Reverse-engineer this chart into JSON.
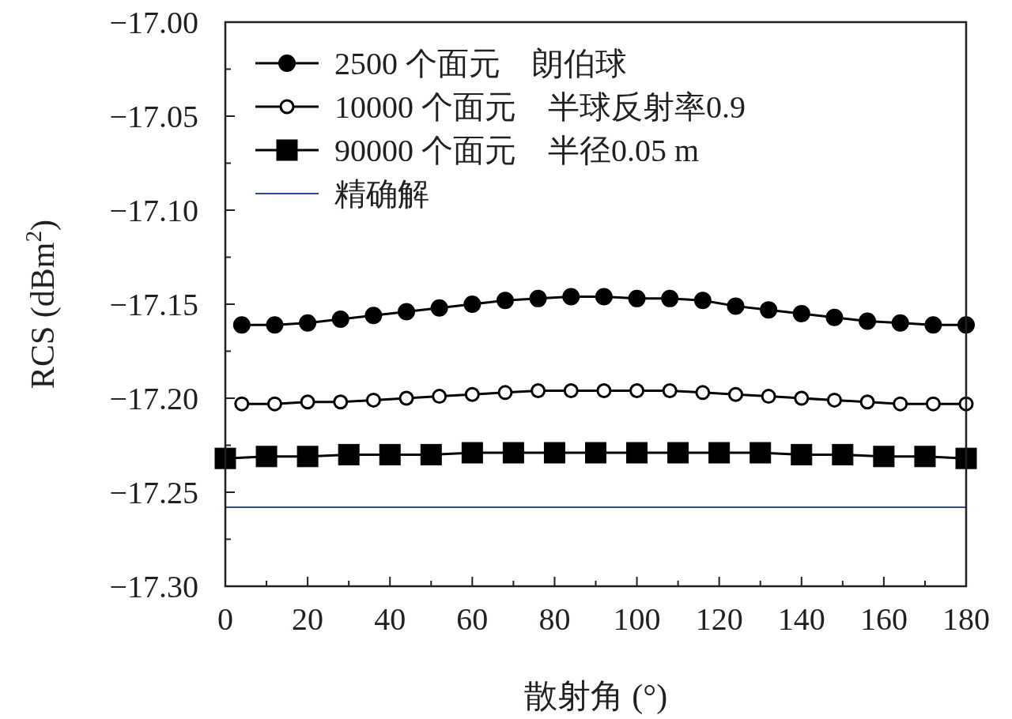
{
  "chart_data": {
    "type": "line",
    "xlabel": "散射角 (°)",
    "ylabel": "RCS (dBm$^{2}$)",
    "xlim": [
      0,
      180
    ],
    "xticks": [
      0,
      {
        "value": 10,
        "label": null
      },
      20,
      {
        "value": 30,
        "label": null
      },
      40,
      {
        "value": 50,
        "label": null
      },
      60,
      {
        "value": 70,
        "label": null
      },
      80,
      {
        "value": 90,
        "label": null
      },
      100,
      {
        "value": 110,
        "label": null
      },
      120,
      {
        "value": 130,
        "label": null
      },
      140,
      {
        "value": 150,
        "label": null
      },
      160,
      {
        "value": 170,
        "label": null
      },
      180
    ],
    "ylim": [
      -17.3,
      -17.0
    ],
    "yticks": [
      {
        "value": -17.3,
        "label": "−17.30"
      },
      {
        "value": -17.275,
        "label": null
      },
      {
        "value": -17.25,
        "label": "−17.25"
      },
      {
        "value": -17.225,
        "label": null
      },
      {
        "value": -17.2,
        "label": "−17.20"
      },
      {
        "value": -17.175,
        "label": null
      },
      {
        "value": -17.15,
        "label": "−17.15"
      },
      {
        "value": -17.125,
        "label": null
      },
      {
        "value": -17.1,
        "label": "−17.10"
      },
      {
        "value": -17.075,
        "label": null
      },
      {
        "value": -17.05,
        "label": "−17.05"
      },
      {
        "value": -17.025,
        "label": null
      },
      {
        "value": -17.0,
        "label": "−17.00"
      }
    ],
    "grid": false,
    "legend": "top left",
    "series": [
      {
        "name": "2500 个面元　朗伯球",
        "color": "#000000",
        "marker": "circle",
        "x": [
          4,
          12,
          20,
          28,
          36,
          44,
          52,
          60,
          68,
          76,
          84,
          92,
          100,
          108,
          116,
          124,
          132,
          140,
          148,
          156,
          164,
          172,
          180
        ],
        "values": [
          -17.161,
          -17.161,
          -17.16,
          -17.158,
          -17.156,
          -17.154,
          -17.152,
          -17.15,
          -17.148,
          -17.147,
          -17.146,
          -17.146,
          -17.147,
          -17.147,
          -17.148,
          -17.151,
          -17.153,
          -17.155,
          -17.157,
          -17.159,
          -17.16,
          -17.161,
          -17.161
        ]
      },
      {
        "name": "10000 个面元　半球反射率0.9",
        "color": "#000000",
        "marker": "circle",
        "x": [
          4,
          12,
          20,
          28,
          36,
          44,
          52,
          60,
          68,
          76,
          84,
          92,
          100,
          108,
          116,
          124,
          132,
          140,
          148,
          156,
          164,
          172,
          180
        ],
        "values": [
          -17.203,
          -17.203,
          -17.202,
          -17.202,
          -17.201,
          -17.2,
          -17.199,
          -17.198,
          -17.197,
          -17.196,
          -17.196,
          -17.196,
          -17.196,
          -17.196,
          -17.197,
          -17.198,
          -17.199,
          -17.2,
          -17.201,
          -17.202,
          -17.203,
          -17.203,
          -17.203
        ]
      },
      {
        "name": "90000 个面元　半径0.05 m",
        "color": "#000000",
        "marker": "square",
        "x": [
          0,
          10,
          20,
          30,
          40,
          50,
          60,
          70,
          80,
          90,
          100,
          110,
          120,
          130,
          140,
          150,
          160,
          170,
          180
        ],
        "values": [
          -17.232,
          -17.231,
          -17.231,
          -17.23,
          -17.23,
          -17.23,
          -17.229,
          -17.229,
          -17.229,
          -17.229,
          -17.229,
          -17.229,
          -17.229,
          -17.229,
          -17.23,
          -17.23,
          -17.231,
          -17.231,
          -17.232
        ]
      },
      {
        "name": "精确解",
        "color": "#2e4a9a",
        "marker": "none",
        "x": [
          0,
          180
        ],
        "values": [
          -17.258,
          -17.258
        ]
      }
    ]
  }
}
